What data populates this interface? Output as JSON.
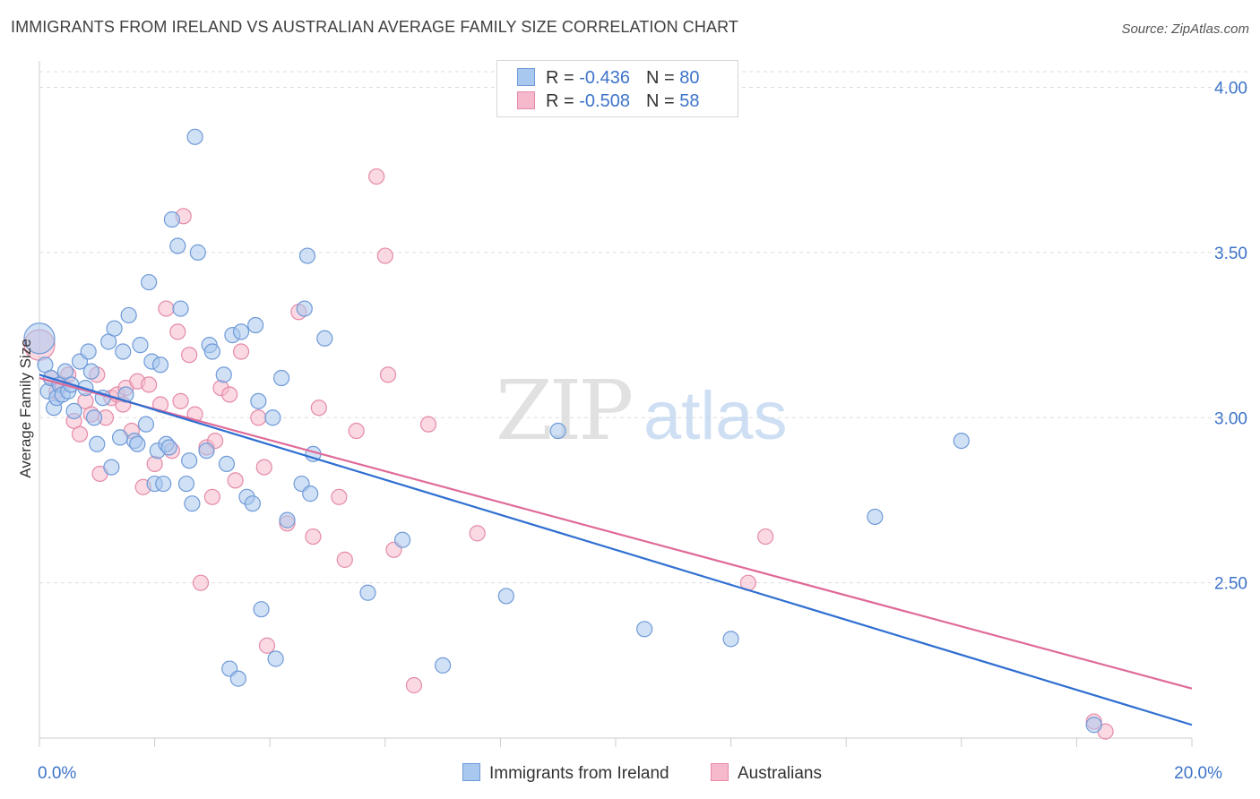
{
  "title": "IMMIGRANTS FROM IRELAND VS AUSTRALIAN AVERAGE FAMILY SIZE CORRELATION CHART",
  "source": "Source: ZipAtlas.com",
  "watermark": {
    "zip": "ZIP",
    "atlas": "atlas"
  },
  "legend": {
    "rows": [
      {
        "r_label": "R = ",
        "r_value": "-0.436",
        "n_label": "N = ",
        "n_value": "80"
      },
      {
        "r_label": "R = ",
        "r_value": "-0.508",
        "n_label": "N = ",
        "n_value": "58"
      }
    ]
  },
  "colors": {
    "blue_fill": "#a9c8ef",
    "blue_stroke": "#6f9ad8",
    "blue_line": "#2f6fd1",
    "pink_fill": "#f6b9cb",
    "pink_stroke": "#e58aa8",
    "pink_line": "#e06a98",
    "tick_text": "#3d74c9",
    "grid": "#dddddd"
  },
  "chart_data": {
    "type": "scatter",
    "title": "IMMIGRANTS FROM IRELAND VS AUSTRALIAN AVERAGE FAMILY SIZE CORRELATION CHART",
    "xlabel": "",
    "ylabel": "Average Family Size",
    "xlim": [
      0,
      20
    ],
    "ylim": [
      2.03,
      4.08
    ],
    "x_tick_labels": [
      {
        "value": 0,
        "label": "0.0%"
      },
      {
        "value": 20,
        "label": "20.0%"
      }
    ],
    "y_ticks": [
      {
        "value": 4.0,
        "label": "4.00"
      },
      {
        "value": 3.5,
        "label": "3.50"
      },
      {
        "value": 3.0,
        "label": "3.00"
      },
      {
        "value": 2.5,
        "label": "2.50"
      }
    ],
    "grid": true,
    "legend_placement": "top-center",
    "series": [
      {
        "name": "Immigrants from Ireland",
        "color": "blue",
        "trend": [
          [
            0,
            3.13
          ],
          [
            20,
            2.07
          ]
        ],
        "points": [
          [
            0.0,
            3.24
          ],
          [
            0.1,
            3.16
          ],
          [
            0.15,
            3.08
          ],
          [
            0.2,
            3.12
          ],
          [
            0.25,
            3.03
          ],
          [
            0.3,
            3.06
          ],
          [
            0.35,
            3.1
          ],
          [
            0.4,
            3.07
          ],
          [
            0.45,
            3.14
          ],
          [
            0.5,
            3.08
          ],
          [
            0.55,
            3.1
          ],
          [
            0.6,
            3.02
          ],
          [
            0.7,
            3.17
          ],
          [
            0.8,
            3.09
          ],
          [
            0.85,
            3.2
          ],
          [
            0.9,
            3.14
          ],
          [
            0.95,
            3.0
          ],
          [
            1.0,
            2.92
          ],
          [
            1.1,
            3.06
          ],
          [
            1.2,
            3.23
          ],
          [
            1.25,
            2.85
          ],
          [
            1.3,
            3.27
          ],
          [
            1.4,
            2.94
          ],
          [
            1.45,
            3.2
          ],
          [
            1.5,
            3.07
          ],
          [
            1.55,
            3.31
          ],
          [
            1.65,
            2.93
          ],
          [
            1.7,
            2.92
          ],
          [
            1.75,
            3.22
          ],
          [
            1.85,
            2.98
          ],
          [
            1.9,
            3.41
          ],
          [
            1.95,
            3.17
          ],
          [
            2.0,
            2.8
          ],
          [
            2.05,
            2.9
          ],
          [
            2.1,
            3.16
          ],
          [
            2.15,
            2.8
          ],
          [
            2.2,
            2.92
          ],
          [
            2.25,
            2.91
          ],
          [
            2.3,
            3.6
          ],
          [
            2.4,
            3.52
          ],
          [
            2.45,
            3.33
          ],
          [
            2.55,
            2.8
          ],
          [
            2.6,
            2.87
          ],
          [
            2.65,
            2.74
          ],
          [
            2.7,
            3.85
          ],
          [
            2.75,
            3.5
          ],
          [
            2.9,
            2.9
          ],
          [
            2.95,
            3.22
          ],
          [
            3.0,
            3.2
          ],
          [
            3.2,
            3.13
          ],
          [
            3.25,
            2.86
          ],
          [
            3.3,
            2.24
          ],
          [
            3.35,
            3.25
          ],
          [
            3.45,
            2.21
          ],
          [
            3.5,
            3.26
          ],
          [
            3.6,
            2.76
          ],
          [
            3.7,
            2.74
          ],
          [
            3.75,
            3.28
          ],
          [
            3.8,
            3.05
          ],
          [
            3.85,
            2.42
          ],
          [
            4.05,
            3.0
          ],
          [
            4.1,
            2.27
          ],
          [
            4.2,
            3.12
          ],
          [
            4.3,
            2.69
          ],
          [
            4.55,
            2.8
          ],
          [
            4.6,
            3.33
          ],
          [
            4.65,
            3.49
          ],
          [
            4.7,
            2.77
          ],
          [
            4.75,
            2.89
          ],
          [
            4.95,
            3.24
          ],
          [
            5.7,
            2.47
          ],
          [
            6.3,
            2.63
          ],
          [
            7.0,
            2.25
          ],
          [
            8.1,
            2.46
          ],
          [
            9.0,
            2.96
          ],
          [
            10.5,
            2.36
          ],
          [
            12.0,
            2.33
          ],
          [
            14.5,
            2.7
          ],
          [
            16.0,
            2.93
          ],
          [
            18.3,
            2.07
          ]
        ]
      },
      {
        "name": "Australians",
        "color": "pink",
        "trend": [
          [
            0,
            3.12
          ],
          [
            20,
            2.18
          ]
        ],
        "points": [
          [
            0.0,
            3.22
          ],
          [
            0.2,
            3.12
          ],
          [
            0.3,
            3.08
          ],
          [
            0.4,
            3.1
          ],
          [
            0.5,
            3.13
          ],
          [
            0.6,
            2.99
          ],
          [
            0.7,
            2.95
          ],
          [
            0.8,
            3.05
          ],
          [
            0.9,
            3.01
          ],
          [
            1.0,
            3.13
          ],
          [
            1.05,
            2.83
          ],
          [
            1.15,
            3.0
          ],
          [
            1.25,
            3.06
          ],
          [
            1.35,
            3.07
          ],
          [
            1.45,
            3.04
          ],
          [
            1.5,
            3.09
          ],
          [
            1.6,
            2.96
          ],
          [
            1.7,
            3.11
          ],
          [
            1.8,
            2.79
          ],
          [
            1.9,
            3.1
          ],
          [
            2.0,
            2.86
          ],
          [
            2.1,
            3.04
          ],
          [
            2.2,
            3.33
          ],
          [
            2.3,
            2.9
          ],
          [
            2.4,
            3.26
          ],
          [
            2.45,
            3.05
          ],
          [
            2.5,
            3.61
          ],
          [
            2.6,
            3.19
          ],
          [
            2.7,
            3.01
          ],
          [
            2.8,
            2.5
          ],
          [
            2.9,
            2.91
          ],
          [
            3.0,
            2.76
          ],
          [
            3.05,
            2.93
          ],
          [
            3.15,
            3.09
          ],
          [
            3.3,
            3.07
          ],
          [
            3.4,
            2.81
          ],
          [
            3.5,
            3.2
          ],
          [
            3.8,
            3.0
          ],
          [
            3.9,
            2.85
          ],
          [
            3.95,
            2.31
          ],
          [
            4.3,
            2.68
          ],
          [
            4.5,
            3.32
          ],
          [
            4.75,
            2.64
          ],
          [
            4.85,
            3.03
          ],
          [
            5.2,
            2.76
          ],
          [
            5.3,
            2.57
          ],
          [
            5.5,
            2.96
          ],
          [
            5.85,
            3.73
          ],
          [
            6.0,
            3.49
          ],
          [
            6.05,
            3.13
          ],
          [
            6.15,
            2.6
          ],
          [
            6.5,
            2.19
          ],
          [
            6.75,
            2.98
          ],
          [
            7.6,
            2.65
          ],
          [
            12.3,
            2.5
          ],
          [
            12.6,
            2.64
          ],
          [
            18.3,
            2.08
          ],
          [
            18.5,
            2.05
          ]
        ]
      }
    ]
  },
  "bottom_legend": [
    {
      "label": "Immigrants from Ireland"
    },
    {
      "label": "Australians"
    }
  ]
}
